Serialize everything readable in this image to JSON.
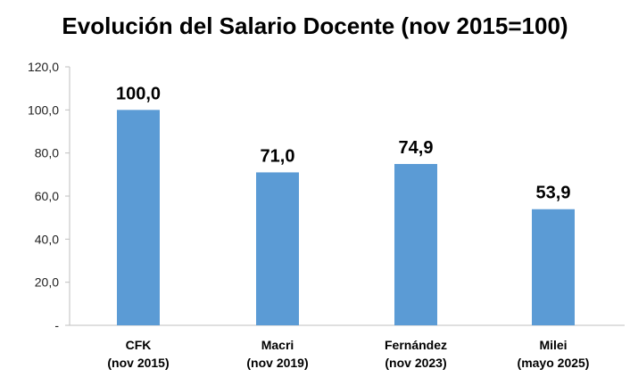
{
  "chart_data": {
    "type": "bar",
    "title": "Evolución del Salario Docente (nov 2015=100)",
    "categories": [
      [
        "CFK",
        "(nov 2015)"
      ],
      [
        "Macri",
        "(nov 2019)"
      ],
      [
        "Fernández",
        "(nov 2023)"
      ],
      [
        "Milei",
        "(mayo 2025)"
      ]
    ],
    "values": [
      100.0,
      71.0,
      74.9,
      53.9
    ],
    "data_labels": [
      "100,0",
      "71,0",
      "74,9",
      "53,9"
    ],
    "ylim": [
      0,
      120
    ],
    "yticks": [
      0,
      20,
      40,
      60,
      80,
      100,
      120
    ],
    "ytick_labels": [
      "-",
      "20,0",
      "40,0",
      "60,0",
      "80,0",
      "100,0",
      "120,0"
    ],
    "bar_color": "#5b9bd5",
    "grid": false,
    "legend": false
  }
}
